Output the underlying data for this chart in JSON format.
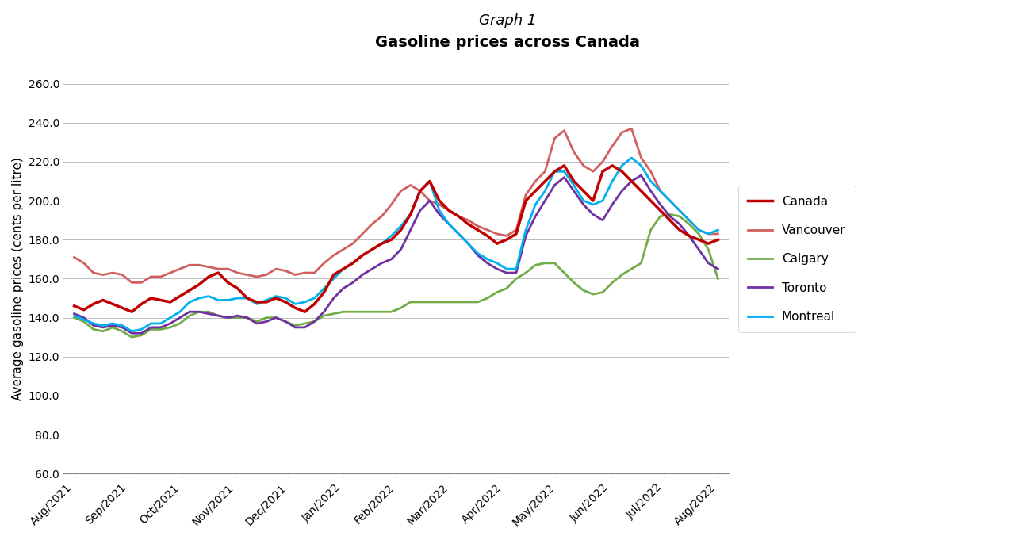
{
  "title_line1": "Graph 1",
  "title_line2": "Gasoline prices across Canada",
  "ylabel": "Average gasoline prices (cents per litre)",
  "ylim": [
    60.0,
    260.0
  ],
  "yticks": [
    60.0,
    80.0,
    100.0,
    120.0,
    140.0,
    160.0,
    180.0,
    200.0,
    220.0,
    240.0,
    260.0
  ],
  "x_labels": [
    "Aug/2021",
    "Sep/2021",
    "Oct/2021",
    "Nov/2021",
    "Dec/2021",
    "Jan/2022",
    "Feb/2022",
    "Mar/2022",
    "Apr/2022",
    "May/2022",
    "Jun/2022",
    "Jul/2022",
    "Aug/2022"
  ],
  "n_ticks": 13,
  "series": [
    {
      "name": "Canada",
      "color": "#C00000",
      "linewidth": 2.5,
      "zorder": 5,
      "data": [
        146,
        144,
        147,
        149,
        147,
        145,
        143,
        147,
        150,
        149,
        148,
        151,
        154,
        157,
        161,
        163,
        158,
        155,
        150,
        148,
        148,
        150,
        148,
        145,
        143,
        147,
        153,
        162,
        165,
        168,
        172,
        175,
        178,
        180,
        185,
        193,
        205,
        210,
        200,
        195,
        192,
        188,
        185,
        182,
        178,
        180,
        183,
        200,
        205,
        210,
        215,
        218,
        210,
        205,
        200,
        215,
        218,
        215,
        210,
        205,
        200,
        195,
        190,
        185,
        182,
        180,
        178,
        180
      ]
    },
    {
      "name": "Vancouver",
      "color": "#D06060",
      "linewidth": 2.0,
      "zorder": 4,
      "data": [
        171,
        168,
        163,
        162,
        163,
        162,
        158,
        158,
        161,
        161,
        163,
        165,
        167,
        167,
        166,
        165,
        165,
        163,
        162,
        161,
        162,
        165,
        164,
        162,
        163,
        163,
        168,
        172,
        175,
        178,
        183,
        188,
        192,
        198,
        205,
        208,
        205,
        200,
        198,
        195,
        192,
        190,
        187,
        185,
        183,
        182,
        185,
        203,
        210,
        215,
        232,
        236,
        225,
        218,
        215,
        220,
        228,
        235,
        237,
        222,
        215,
        205,
        200,
        195,
        190,
        185,
        183,
        183
      ]
    },
    {
      "name": "Calgary",
      "color": "#70AD47",
      "linewidth": 2.0,
      "zorder": 3,
      "data": [
        140,
        138,
        134,
        133,
        135,
        133,
        130,
        131,
        134,
        134,
        135,
        137,
        141,
        143,
        143,
        141,
        140,
        140,
        140,
        138,
        140,
        140,
        138,
        136,
        137,
        138,
        141,
        142,
        143,
        143,
        143,
        143,
        143,
        143,
        145,
        148,
        148,
        148,
        148,
        148,
        148,
        148,
        148,
        150,
        153,
        155,
        160,
        163,
        167,
        168,
        168,
        163,
        158,
        154,
        152,
        153,
        158,
        162,
        165,
        168,
        185,
        192,
        193,
        192,
        188,
        183,
        175,
        160
      ]
    },
    {
      "name": "Toronto",
      "color": "#7030A0",
      "linewidth": 2.0,
      "zorder": 4,
      "data": [
        142,
        140,
        136,
        135,
        136,
        135,
        132,
        132,
        135,
        135,
        137,
        140,
        143,
        143,
        142,
        141,
        140,
        141,
        140,
        137,
        138,
        140,
        138,
        135,
        135,
        138,
        143,
        150,
        155,
        158,
        162,
        165,
        168,
        170,
        175,
        185,
        195,
        200,
        193,
        188,
        183,
        178,
        172,
        168,
        165,
        163,
        163,
        182,
        192,
        200,
        208,
        212,
        205,
        198,
        193,
        190,
        198,
        205,
        210,
        213,
        205,
        198,
        192,
        188,
        182,
        175,
        168,
        165
      ]
    },
    {
      "name": "Montreal",
      "color": "#00B0F0",
      "linewidth": 2.0,
      "zorder": 4,
      "data": [
        141,
        139,
        137,
        136,
        137,
        136,
        133,
        134,
        137,
        137,
        140,
        143,
        148,
        150,
        151,
        149,
        149,
        150,
        150,
        147,
        149,
        151,
        150,
        147,
        148,
        150,
        155,
        160,
        165,
        168,
        172,
        175,
        178,
        182,
        187,
        193,
        205,
        210,
        195,
        188,
        183,
        178,
        173,
        170,
        168,
        165,
        165,
        185,
        198,
        205,
        215,
        215,
        208,
        200,
        198,
        200,
        210,
        218,
        222,
        218,
        210,
        205,
        200,
        195,
        190,
        185,
        183,
        185
      ]
    }
  ]
}
